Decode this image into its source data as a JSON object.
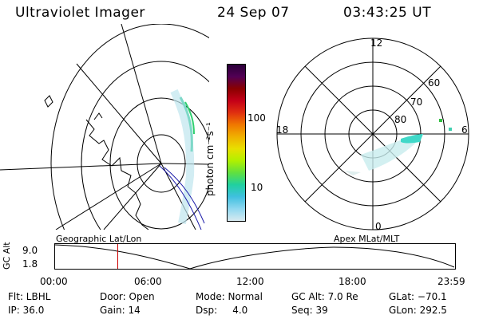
{
  "header": {
    "title": "Ultraviolet Imager",
    "date": "24 Sep 07",
    "time": "03:43:25 UT"
  },
  "colorbar": {
    "unit_label": "photon cm⁻²s⁻¹",
    "tick_100": "100",
    "tick_10": "10",
    "colors": [
      "#2a0038",
      "#520055",
      "#8a0000",
      "#c40018",
      "#e03010",
      "#f07800",
      "#f0b000",
      "#e8e000",
      "#b0f000",
      "#60e040",
      "#20d0a0",
      "#40c0e0",
      "#90d8f0",
      "#d8eaf0"
    ]
  },
  "polar_plot": {
    "label_12": "12",
    "label_18": "18",
    "label_6": "6",
    "label_0": "0",
    "label_60": "60",
    "label_70": "70",
    "label_80": "80"
  },
  "timeline": {
    "ylabel": "GC Alt",
    "ymax": "9.0",
    "ymin": "1.8",
    "left_label": "Geographic Lat/Lon",
    "right_label": "Apex MLat/MLT",
    "ticks": [
      "00:00",
      "06:00",
      "12:00",
      "18:00",
      "23:59"
    ],
    "current_time_fraction": 0.157
  },
  "footer": {
    "flt": "Flt: LBHL",
    "door": "Door: Open",
    "mode": "Mode: Normal",
    "gc_alt": "GC Alt: 7.0 Re",
    "glat": "GLat: −70.1",
    "ip": "IP: 36.0",
    "gain": "Gain: 14",
    "dsp": "Dsp:     4.0",
    "seq": "Seq: 39",
    "glon": "GLon: 292.5"
  }
}
